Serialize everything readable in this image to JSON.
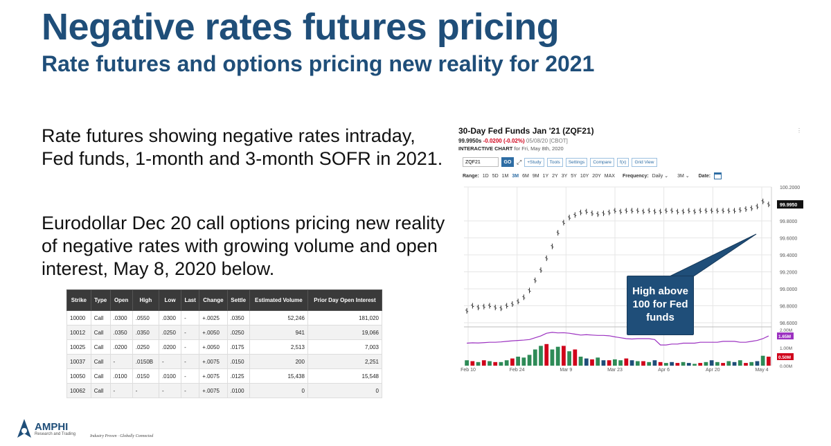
{
  "slide": {
    "title": "Negative rates futures pricing",
    "subtitle": "Rate futures and options pricing new reality for 2021",
    "paragraph1": "Rate futures showing negative rates intraday, Fed funds, 1-month and 3-month SOFR in 2021.",
    "paragraph2": "Eurodollar Dec 20 call options pricing new reality of negative rates with growing volume and open interest,  May 8, 2020 below.",
    "callout": "High above 100 for Fed funds"
  },
  "options_table": {
    "headers": [
      "Strike",
      "Type",
      "Open",
      "High",
      "Low",
      "Last",
      "Change",
      "Settle",
      "Estimated Volume",
      "Prior Day Open Interest"
    ],
    "rows": [
      [
        "10000",
        "Call",
        ".0300",
        ".0550",
        ".0300",
        "-",
        "+.0025",
        ".0350",
        "52,246",
        "181,020"
      ],
      [
        "10012",
        "Call",
        ".0350",
        ".0350",
        ".0250",
        "-",
        "+.0050",
        ".0250",
        "941",
        "19,066"
      ],
      [
        "10025",
        "Call",
        ".0200",
        ".0250",
        ".0200",
        "-",
        "+.0050",
        ".0175",
        "2,513",
        "7,003"
      ],
      [
        "10037",
        "Call",
        "-",
        ".0150B",
        "-",
        "-",
        "+.0075",
        ".0150",
        "200",
        "2,251"
      ],
      [
        "10050",
        "Call",
        ".0100",
        ".0150",
        ".0100",
        "-",
        "+.0075",
        ".0125",
        "15,438",
        "15,548"
      ],
      [
        "10062",
        "Call",
        "-",
        "-",
        "-",
        "-",
        "+.0075",
        ".0100",
        "0",
        "0"
      ]
    ]
  },
  "chart_panel": {
    "title": "30-Day Fed Funds Jan '21 (ZQF21)",
    "price": "99.9950s",
    "change": "-0.0200 (-0.02%)",
    "meta": "05/08/20 [CBOT]",
    "interactive_label": "INTERACTIVE CHART",
    "interactive_date": "for Fri, May 8th, 2020",
    "symbol_value": "ZQF21",
    "go_label": "GO",
    "buttons": [
      "+Study",
      "Tools",
      "Settings",
      "Compare",
      "f(x)",
      "Grid View"
    ],
    "range_label": "Range:",
    "ranges": [
      "1D",
      "5D",
      "1M",
      "3M",
      "6M",
      "9M",
      "1Y",
      "2Y",
      "3Y",
      "5Y",
      "10Y",
      "20Y",
      "MAX"
    ],
    "active_range": "3M",
    "frequency_label": "Frequency:",
    "frequency_value": "Daily",
    "period_value": "3M",
    "date_label": "Date:",
    "more_dots": "⋮",
    "price_badge": "99.9950",
    "study_badge_1": "1.65M",
    "study_badge_2": "0.50M"
  },
  "chart_data": {
    "type": "line",
    "x_ticks": [
      "Feb 10",
      "Feb 24",
      "Mar 9",
      "Mar 23",
      "Apr 6",
      "Apr 20",
      "May 4"
    ],
    "y_ticks": [
      "100.2000",
      "99.8000",
      "99.6000",
      "99.4000",
      "99.2000",
      "99.0000",
      "98.8000",
      "98.6000"
    ],
    "ylim": [
      98.6,
      100.2
    ],
    "price": [
      98.74,
      98.8,
      98.78,
      98.79,
      98.8,
      98.78,
      98.77,
      98.8,
      98.82,
      98.85,
      98.9,
      98.98,
      99.1,
      99.22,
      99.36,
      99.5,
      99.66,
      99.78,
      99.84,
      99.87,
      99.9,
      99.91,
      99.89,
      99.88,
      99.89,
      99.9,
      99.92,
      99.91,
      99.92,
      99.92,
      99.92,
      99.91,
      99.92,
      99.91,
      99.91,
      99.92,
      99.92,
      99.91,
      99.91,
      99.92,
      99.91,
      99.92,
      99.92,
      99.92,
      99.92,
      99.92,
      99.92,
      99.92,
      99.93,
      99.94,
      99.95,
      99.97,
      100.03,
      99.995
    ],
    "volume_axis": [
      "2.00M",
      "1.00M",
      "0.00M"
    ],
    "volume": [
      0.3,
      0.25,
      0.2,
      0.3,
      0.25,
      0.2,
      0.2,
      0.3,
      0.4,
      0.5,
      0.45,
      0.6,
      0.9,
      1.1,
      1.2,
      0.9,
      1.05,
      1.1,
      0.8,
      0.9,
      0.5,
      0.4,
      0.35,
      0.45,
      0.3,
      0.3,
      0.35,
      0.3,
      0.4,
      0.3,
      0.25,
      0.25,
      0.2,
      0.3,
      0.2,
      0.15,
      0.2,
      0.15,
      0.2,
      0.15,
      0.1,
      0.15,
      0.2,
      0.3,
      0.2,
      0.15,
      0.25,
      0.2,
      0.3,
      0.15,
      0.2,
      0.25,
      0.55,
      0.5
    ],
    "volume_colors": [
      "#2e8b57",
      "#d0021b",
      "#2e8b57",
      "#d0021b",
      "#2e8b57",
      "#d0021b",
      "#2e8b57",
      "#2e8b57",
      "#d0021b",
      "#2e8b57",
      "#2e8b57",
      "#2e8b57",
      "#2e8b57",
      "#2e8b57",
      "#d0021b",
      "#2e8b57",
      "#2e8b57",
      "#d0021b",
      "#2e8b57",
      "#d0021b",
      "#2e8b57",
      "#1f4e79",
      "#d0021b",
      "#2e8b57",
      "#1f4e79",
      "#d0021b",
      "#2e8b57",
      "#2e8b57",
      "#d0021b",
      "#1f4e79",
      "#2e8b57",
      "#d0021b",
      "#2e8b57",
      "#1f4e79",
      "#d0021b",
      "#2e8b57",
      "#1f4e79",
      "#d0021b",
      "#2e8b57",
      "#1f4e79",
      "#2e8b57",
      "#d0021b",
      "#2e8b57",
      "#1f4e79",
      "#2e8b57",
      "#d0021b",
      "#2e8b57",
      "#1f4e79",
      "#2e8b57",
      "#d0021b",
      "#2e8b57",
      "#1f4e79",
      "#2e8b57",
      "#d0021b"
    ],
    "open_interest": [
      1.25,
      1.27,
      1.26,
      1.28,
      1.3,
      1.3,
      1.32,
      1.35,
      1.38,
      1.4,
      1.42,
      1.45,
      1.55,
      1.65,
      1.8,
      1.85,
      1.82,
      1.83,
      1.8,
      1.75,
      1.7,
      1.72,
      1.7,
      1.68,
      1.68,
      1.66,
      1.6,
      1.55,
      1.5,
      1.48,
      1.5,
      1.5,
      1.5,
      1.45,
      1.15,
      1.15,
      1.2,
      1.2,
      1.25,
      1.25,
      1.25,
      1.3,
      1.3,
      1.3,
      1.3,
      1.35,
      1.35,
      1.35,
      1.3,
      1.3,
      1.35,
      1.4,
      1.5,
      1.65
    ],
    "colors": {
      "price": "#333333",
      "open_interest": "#9b30c0",
      "grid": "#e6e6e6"
    }
  },
  "footer": {
    "logo_name": "AMPHI",
    "logo_tagline": "Research and Trading",
    "slogan": "Industry Proven · Globally Connected"
  }
}
